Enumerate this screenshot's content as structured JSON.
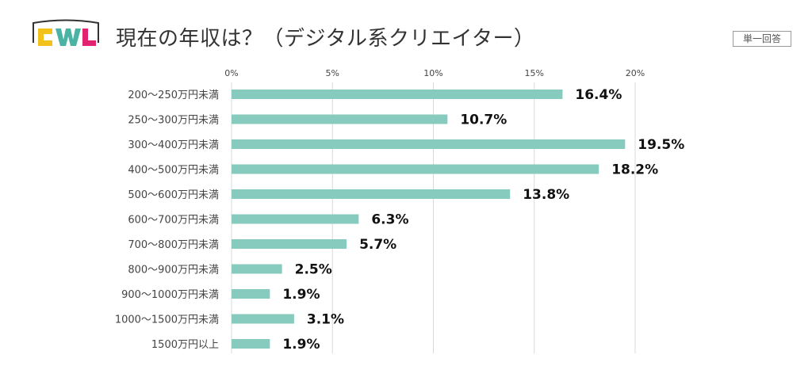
{
  "header": {
    "logo_text": "CWL",
    "title": "現在の年収は？（デジタル系クリエイター）",
    "badge": "単一回答"
  },
  "colors": {
    "bar": "#86cbbd",
    "logo_c": "#f2c21b",
    "logo_w": "#4bb3a4",
    "logo_l": "#e2236f",
    "logo_frame": "#333333"
  },
  "chart_data": {
    "type": "bar",
    "orientation": "horizontal",
    "title": "現在の年収は？（デジタル系クリエイター）",
    "xlabel": "",
    "ylabel": "",
    "xlim": [
      0,
      20
    ],
    "xticks": [
      0,
      5,
      10,
      15,
      20
    ],
    "tick_suffix": "%",
    "grid": true,
    "categories": [
      "200〜250万円未満",
      "250〜300万円未満",
      "300〜400万円未満",
      "400〜500万円未満",
      "500〜600万円未満",
      "600〜700万円未満",
      "700〜800万円未満",
      "800〜900万円未満",
      "900〜1000万円未満",
      "1000〜1500万円未満",
      "1500万円以上"
    ],
    "values": [
      16.4,
      10.7,
      19.5,
      18.2,
      13.8,
      6.3,
      5.7,
      2.5,
      1.9,
      3.1,
      1.9
    ],
    "value_labels": [
      "16.4%",
      "10.7%",
      "19.5%",
      "18.2%",
      "13.8%",
      "6.3%",
      "5.7%",
      "2.5%",
      "1.9%",
      "3.1%",
      "1.9%"
    ]
  }
}
